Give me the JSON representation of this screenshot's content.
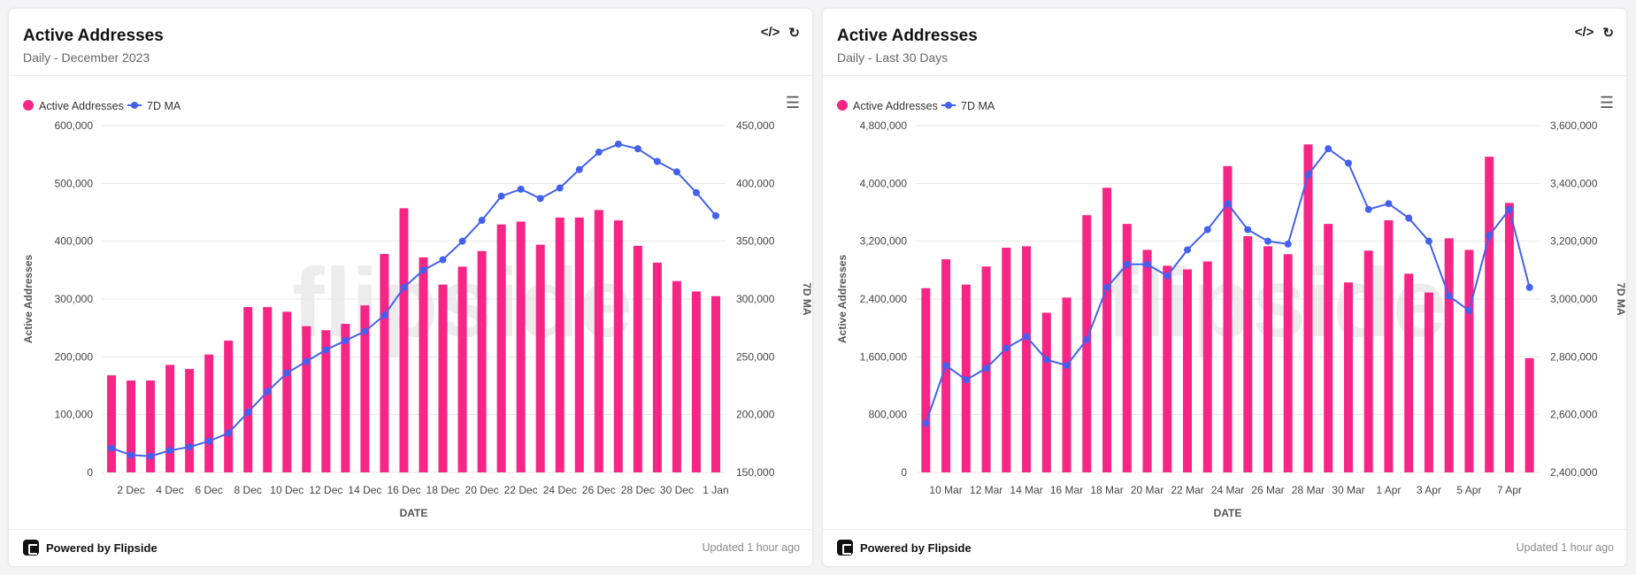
{
  "cards": [
    {
      "title": "Active Addresses",
      "subtitle": "Daily - December 2023",
      "footer": {
        "brand": "Powered by Flipside",
        "updated": "Updated 1 hour ago"
      },
      "icons": [
        "code-icon",
        "refresh-icon",
        "menu-icon"
      ]
    },
    {
      "title": "Active Addresses",
      "subtitle": "Daily - Last 30 Days",
      "footer": {
        "brand": "Powered by Flipside",
        "updated": "Updated 1 hour ago"
      },
      "icons": [
        "code-icon",
        "refresh-icon",
        "menu-icon"
      ]
    }
  ],
  "colors": {
    "bars": "#f72585",
    "line": "#4361ee"
  },
  "chart_data": [
    {
      "type": "bar+line",
      "xlabel": "DATE",
      "ylabel": "Active Addresses",
      "y2label": "7D MA",
      "legend": [
        "Active Addresses",
        "7D MA"
      ],
      "legend_position": "top-left",
      "grid": true,
      "ylim": [
        0,
        600000
      ],
      "yticks": [
        "0",
        "100,000",
        "200,000",
        "300,000",
        "400,000",
        "500,000",
        "600,000"
      ],
      "y2lim": [
        150000,
        450000
      ],
      "y2ticks": [
        "150,000",
        "200,000",
        "250,000",
        "300,000",
        "350,000",
        "400,000",
        "450,000"
      ],
      "categories": [
        "1 Dec",
        "2 Dec",
        "3 Dec",
        "4 Dec",
        "5 Dec",
        "6 Dec",
        "7 Dec",
        "8 Dec",
        "9 Dec",
        "10 Dec",
        "11 Dec",
        "12 Dec",
        "13 Dec",
        "14 Dec",
        "15 Dec",
        "16 Dec",
        "17 Dec",
        "18 Dec",
        "19 Dec",
        "20 Dec",
        "21 Dec",
        "22 Dec",
        "23 Dec",
        "24 Dec",
        "25 Dec",
        "26 Dec",
        "27 Dec",
        "28 Dec",
        "29 Dec",
        "30 Dec",
        "31 Dec",
        "1 Jan"
      ],
      "xtick_labels": [
        "2 Dec",
        "4 Dec",
        "6 Dec",
        "8 Dec",
        "10 Dec",
        "12 Dec",
        "14 Dec",
        "16 Dec",
        "18 Dec",
        "20 Dec",
        "22 Dec",
        "24 Dec",
        "26 Dec",
        "28 Dec",
        "30 Dec",
        "1 Jan"
      ],
      "series": [
        {
          "name": "Active Addresses",
          "kind": "bar",
          "axis": "left",
          "values": [
            168000,
            159000,
            159000,
            186000,
            179000,
            204000,
            228000,
            286000,
            286000,
            278000,
            253000,
            246000,
            257000,
            289000,
            378000,
            457000,
            372000,
            325000,
            356000,
            383000,
            429000,
            434000,
            394000,
            441000,
            441000,
            454000,
            436000,
            392000,
            363000,
            331000,
            313000,
            305000
          ]
        },
        {
          "name": "7D MA",
          "kind": "line",
          "axis": "right",
          "values": [
            171000,
            165000,
            164000,
            169000,
            172000,
            177000,
            184000,
            202000,
            220000,
            236000,
            246000,
            256000,
            264000,
            272000,
            286000,
            310000,
            325000,
            334000,
            350000,
            368000,
            389000,
            395000,
            387000,
            396000,
            412000,
            427000,
            434000,
            430000,
            419000,
            410000,
            392000,
            372000
          ]
        }
      ]
    },
    {
      "type": "bar+line",
      "xlabel": "DATE",
      "ylabel": "Active Addresses",
      "y2label": "7D MA",
      "legend": [
        "Active Addresses",
        "7D MA"
      ],
      "legend_position": "top-left",
      "grid": true,
      "ylim": [
        0,
        4800000
      ],
      "yticks": [
        "0",
        "800,000",
        "1,600,000",
        "2,400,000",
        "3,200,000",
        "4,000,000",
        "4,800,000"
      ],
      "y2lim": [
        2400000,
        3600000
      ],
      "y2ticks": [
        "2,400,000",
        "2,600,000",
        "2,800,000",
        "3,000,000",
        "3,200,000",
        "3,400,000",
        "3,600,000"
      ],
      "categories": [
        "9 Mar",
        "10 Mar",
        "11 Mar",
        "12 Mar",
        "13 Mar",
        "14 Mar",
        "15 Mar",
        "16 Mar",
        "17 Mar",
        "18 Mar",
        "19 Mar",
        "20 Mar",
        "21 Mar",
        "22 Mar",
        "23 Mar",
        "24 Mar",
        "25 Mar",
        "26 Mar",
        "27 Mar",
        "28 Mar",
        "29 Mar",
        "30 Mar",
        "31 Mar",
        "1 Apr",
        "2 Apr",
        "3 Apr",
        "4 Apr",
        "5 Apr",
        "6 Apr",
        "7 Apr",
        "8 Apr"
      ],
      "xtick_labels": [
        "10 Mar",
        "12 Mar",
        "14 Mar",
        "16 Mar",
        "18 Mar",
        "20 Mar",
        "22 Mar",
        "24 Mar",
        "26 Mar",
        "28 Mar",
        "30 Mar",
        "1 Apr",
        "3 Apr",
        "5 Apr",
        "7 Apr"
      ],
      "series": [
        {
          "name": "Active Addresses",
          "kind": "bar",
          "axis": "left",
          "values": [
            2550000,
            2950000,
            2600000,
            2850000,
            3110000,
            3130000,
            2210000,
            2420000,
            3560000,
            3940000,
            3440000,
            3080000,
            2860000,
            2810000,
            2920000,
            4240000,
            3270000,
            3130000,
            3020000,
            4540000,
            3440000,
            2630000,
            3070000,
            3490000,
            2750000,
            2490000,
            3240000,
            3080000,
            4370000,
            3730000,
            1580000
          ]
        },
        {
          "name": "7D MA",
          "kind": "line",
          "axis": "right",
          "values": [
            2570000,
            2770000,
            2720000,
            2760000,
            2830000,
            2870000,
            2790000,
            2770000,
            2860000,
            3040000,
            3120000,
            3120000,
            3080000,
            3170000,
            3240000,
            3330000,
            3240000,
            3200000,
            3190000,
            3430000,
            3520000,
            3470000,
            3310000,
            3330000,
            3280000,
            3200000,
            3010000,
            2960000,
            3220000,
            3310000,
            3040000
          ]
        }
      ]
    }
  ]
}
